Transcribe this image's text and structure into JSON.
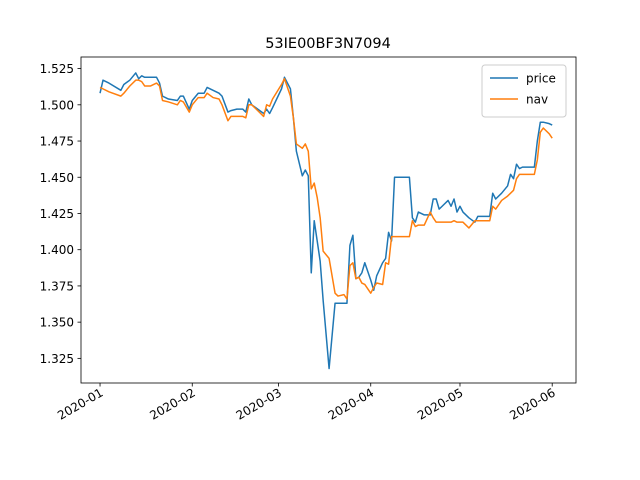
{
  "chart_data": {
    "type": "line",
    "title": "53IE00BF3N7094",
    "x": [
      0,
      1,
      3,
      7,
      8,
      10,
      12,
      13,
      14,
      15,
      17,
      19,
      20,
      21,
      23,
      26,
      27,
      28,
      30,
      31,
      33,
      35,
      36,
      38,
      40,
      41,
      43,
      44,
      46,
      48,
      49,
      50,
      51,
      53,
      55,
      56,
      57,
      58,
      61,
      62,
      64,
      65,
      66,
      68,
      69,
      70,
      71,
      72,
      73,
      74,
      75,
      77,
      79,
      80,
      82,
      83,
      84,
      85,
      86,
      87,
      88,
      89,
      91,
      92,
      93,
      95,
      96,
      97,
      98,
      99,
      104,
      105,
      106,
      107,
      109,
      111,
      112,
      113,
      114,
      115,
      117,
      118,
      119,
      120,
      121,
      122,
      124,
      126,
      127,
      129,
      130,
      131,
      132,
      133,
      135,
      137,
      138,
      139,
      140,
      141,
      142,
      144,
      145,
      146,
      147,
      148,
      149,
      151,
      152
    ],
    "series": [
      {
        "name": "price",
        "color": "#1f77b4",
        "values": [
          1.508,
          1.517,
          1.515,
          1.51,
          1.514,
          1.517,
          1.522,
          1.518,
          1.52,
          1.519,
          1.519,
          1.519,
          1.515,
          1.506,
          1.504,
          1.503,
          1.506,
          1.506,
          1.497,
          1.503,
          1.508,
          1.508,
          1.512,
          1.51,
          1.508,
          1.506,
          1.495,
          1.496,
          1.497,
          1.497,
          1.495,
          1.504,
          1.5,
          1.497,
          1.494,
          1.497,
          1.494,
          1.498,
          1.511,
          1.519,
          1.511,
          1.491,
          1.468,
          1.451,
          1.455,
          1.451,
          1.384,
          1.42,
          1.406,
          1.392,
          1.365,
          1.318,
          1.363,
          1.363,
          1.363,
          1.363,
          1.403,
          1.41,
          1.38,
          1.381,
          1.384,
          1.391,
          1.379,
          1.372,
          1.382,
          1.391,
          1.394,
          1.412,
          1.406,
          1.45,
          1.45,
          1.422,
          1.419,
          1.426,
          1.424,
          1.424,
          1.435,
          1.435,
          1.428,
          1.43,
          1.434,
          1.43,
          1.435,
          1.426,
          1.43,
          1.426,
          1.422,
          1.419,
          1.423,
          1.423,
          1.423,
          1.423,
          1.439,
          1.435,
          1.439,
          1.444,
          1.452,
          1.449,
          1.459,
          1.456,
          1.457,
          1.457,
          1.457,
          1.457,
          1.475,
          1.488,
          1.488,
          1.487,
          1.486
        ]
      },
      {
        "name": "nav",
        "color": "#ff7f0e",
        "values": [
          1.512,
          1.511,
          1.509,
          1.506,
          1.508,
          1.513,
          1.517,
          1.517,
          1.516,
          1.513,
          1.513,
          1.515,
          1.513,
          1.503,
          1.502,
          1.5,
          1.503,
          1.502,
          1.495,
          1.5,
          1.505,
          1.505,
          1.508,
          1.505,
          1.504,
          1.5,
          1.489,
          1.492,
          1.492,
          1.492,
          1.491,
          1.5,
          1.5,
          1.496,
          1.492,
          1.5,
          1.499,
          1.504,
          1.514,
          1.518,
          1.506,
          1.491,
          1.473,
          1.47,
          1.473,
          1.468,
          1.442,
          1.446,
          1.436,
          1.422,
          1.399,
          1.394,
          1.37,
          1.368,
          1.369,
          1.366,
          1.389,
          1.391,
          1.38,
          1.381,
          1.377,
          1.376,
          1.37,
          1.374,
          1.377,
          1.376,
          1.391,
          1.39,
          1.409,
          1.409,
          1.409,
          1.42,
          1.416,
          1.417,
          1.417,
          1.426,
          1.422,
          1.419,
          1.419,
          1.419,
          1.419,
          1.419,
          1.42,
          1.419,
          1.419,
          1.419,
          1.415,
          1.42,
          1.42,
          1.42,
          1.42,
          1.42,
          1.43,
          1.428,
          1.434,
          1.437,
          1.439,
          1.441,
          1.449,
          1.452,
          1.452,
          1.452,
          1.452,
          1.452,
          1.462,
          1.481,
          1.484,
          1.48,
          1.477
        ]
      }
    ],
    "xlim": [
      -6.4,
      160
    ],
    "xticks": [
      {
        "value": 0,
        "label": "2020-01"
      },
      {
        "value": 31,
        "label": "2020-02"
      },
      {
        "value": 60,
        "label": "2020-03"
      },
      {
        "value": 91,
        "label": "2020-04"
      },
      {
        "value": 121,
        "label": "2020-05"
      },
      {
        "value": 152,
        "label": "2020-06"
      }
    ],
    "ylim": [
      1.308,
      1.533
    ],
    "yticks": [
      1.325,
      {
        "value": 1.35,
        "label": "1.350"
      },
      1.375,
      {
        "value": 1.4,
        "label": "1.400"
      },
      1.425,
      {
        "value": 1.45,
        "label": "1.450"
      },
      1.475,
      {
        "value": 1.5,
        "label": "1.500"
      },
      1.525
    ],
    "legend": "upper right",
    "grid": false
  }
}
